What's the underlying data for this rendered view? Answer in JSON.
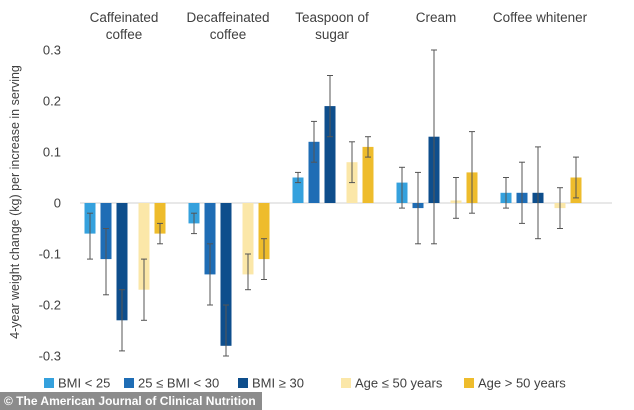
{
  "chart_data": {
    "type": "bar",
    "ylabel": "4-year weight change (kg) per increase in serving",
    "ylim": [
      -0.3,
      0.3
    ],
    "yticks": [
      0.3,
      0.2,
      0.1,
      0,
      -0.1,
      -0.2,
      -0.3
    ],
    "ytick_labels": [
      "0.3",
      "0.2",
      "0.1",
      "0",
      "-0.1",
      "-0.2",
      "-0.3"
    ],
    "grid": false,
    "legend_position": "bottom",
    "categories": [
      "Caffeinated\ncoffee",
      "Decaffeinated\ncoffee",
      "Teaspoon of\nsugar",
      "Cream",
      "Coffee whitener"
    ],
    "series": [
      {
        "name": "BMI < 25",
        "color": "#35a1dd",
        "values": [
          -0.06,
          -0.04,
          0.05,
          0.04,
          0.02
        ],
        "ci": [
          [
            -0.11,
            -0.02
          ],
          [
            -0.06,
            -0.02
          ],
          [
            0.04,
            0.06
          ],
          [
            -0.01,
            0.07
          ],
          [
            -0.01,
            0.05
          ]
        ]
      },
      {
        "name": "25 ≤ BMI < 30",
        "color": "#1f6db5",
        "values": [
          -0.11,
          -0.14,
          0.12,
          -0.01,
          0.02
        ],
        "ci": [
          [
            -0.18,
            -0.05
          ],
          [
            -0.2,
            -0.08
          ],
          [
            0.08,
            0.16
          ],
          [
            -0.08,
            0.06
          ],
          [
            -0.04,
            0.08
          ]
        ]
      },
      {
        "name": "BMI ≥ 30",
        "color": "#0e4e8c",
        "values": [
          -0.23,
          -0.28,
          0.19,
          0.13,
          0.02
        ],
        "ci": [
          [
            -0.29,
            -0.17
          ],
          [
            -0.3,
            -0.2
          ],
          [
            0.13,
            0.25
          ],
          [
            -0.08,
            0.3
          ],
          [
            -0.07,
            0.11
          ]
        ]
      },
      {
        "name": "Age ≤ 50 years",
        "color": "#fbe7a8",
        "values": [
          -0.17,
          -0.14,
          0.08,
          0.005,
          -0.01
        ],
        "ci": [
          [
            -0.23,
            -0.11
          ],
          [
            -0.17,
            -0.1
          ],
          [
            0.04,
            0.12
          ],
          [
            -0.03,
            0.05
          ],
          [
            -0.05,
            0.03
          ]
        ]
      },
      {
        "name": "Age > 50 years",
        "color": "#eebc2c",
        "values": [
          -0.06,
          -0.11,
          0.11,
          0.06,
          0.05
        ],
        "ci": [
          [
            -0.08,
            -0.04
          ],
          [
            -0.15,
            -0.07
          ],
          [
            0.09,
            0.13
          ],
          [
            -0.02,
            0.14
          ],
          [
            0.01,
            0.09
          ]
        ]
      }
    ]
  },
  "credit": "© The American Journal of Clinical Nutrition"
}
